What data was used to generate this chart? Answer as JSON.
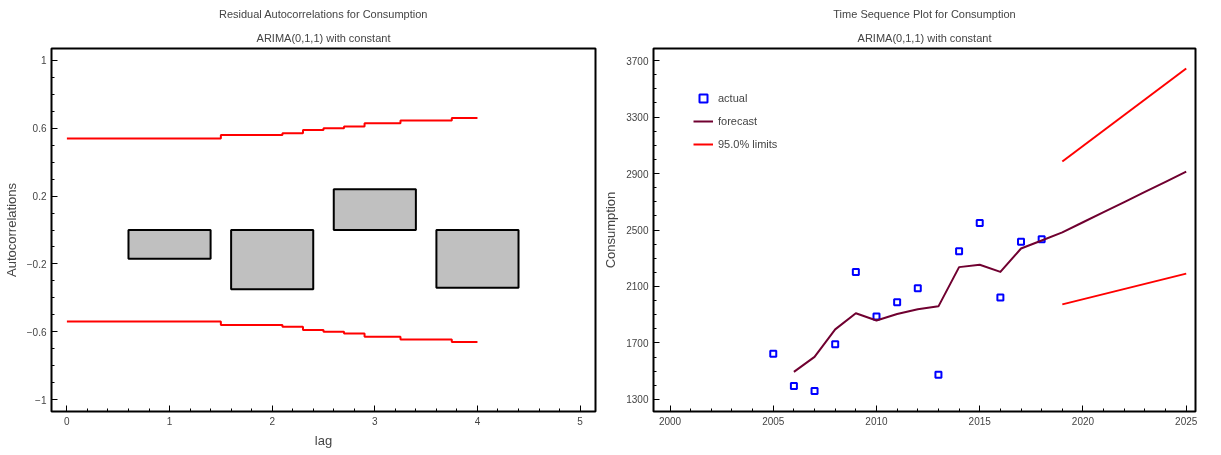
{
  "chart_data": [
    {
      "type": "bar",
      "title": "Residual Autocorrelations for Consumption",
      "subtitle": "ARIMA(0,1,1) with constant",
      "xlabel": "lag",
      "ylabel": "Autocorrelations",
      "xlim": [
        -0.15,
        5.15
      ],
      "xticks": [
        0,
        1,
        2,
        3,
        4,
        5
      ],
      "ylim": [
        -1.07,
        1.07
      ],
      "yticks": [
        -1,
        -0.6,
        -0.2,
        0.2,
        0.6,
        1
      ],
      "grid": false,
      "legend": false,
      "series": [
        {
          "color": "#c0c0c0",
          "x": [
            1,
            2,
            3,
            4
          ],
          "values": [
            -0.17,
            -0.35,
            0.24,
            -0.34
          ]
        },
        {
          "type": "step",
          "color": "#ff0000",
          "x": [
            0,
            1.5,
            2.1,
            2.3,
            2.5,
            2.7,
            2.9,
            3.25,
            3.75,
            4
          ],
          "values": [
            0.54,
            0.56,
            0.57,
            0.59,
            0.6,
            0.61,
            0.63,
            0.645,
            0.66,
            0.66
          ]
        },
        {
          "type": "step",
          "color": "#ff0000",
          "x": [
            0,
            1.5,
            2.1,
            2.3,
            2.5,
            2.7,
            2.9,
            3.25,
            3.75,
            4
          ],
          "values": [
            -0.54,
            -0.56,
            -0.57,
            -0.59,
            -0.6,
            -0.61,
            -0.63,
            -0.645,
            -0.66,
            -0.66
          ]
        }
      ]
    },
    {
      "type": "line",
      "title": "Time Sequence Plot for Consumption",
      "subtitle": "ARIMA(0,1,1) with constant",
      "ylabel": "Consumption",
      "xlim": [
        1999.2,
        2025.45
      ],
      "xticks": [
        2000,
        2005,
        2010,
        2015,
        2020,
        2025
      ],
      "ylim": [
        1214,
        3786
      ],
      "yticks": [
        1300,
        1700,
        2100,
        2500,
        2900,
        3300,
        3700
      ],
      "grid": false,
      "legend": "top left",
      "series": [
        {
          "type": "scatter",
          "name": "actual",
          "color": "#0000ff",
          "marker": "square",
          "x": [
            2005,
            2006,
            2007,
            2008,
            2009,
            2010,
            2011,
            2012,
            2013,
            2014,
            2015,
            2016,
            2017,
            2018
          ],
          "values": [
            1624,
            1395,
            1360,
            1690,
            2203,
            1887,
            1988,
            2088,
            1475,
            2349,
            2549,
            2022,
            2417,
            2435
          ]
        },
        {
          "name": "forecast",
          "color": "#700030",
          "x": [
            2006,
            2007,
            2008,
            2009,
            2010,
            2011,
            2012,
            2013,
            2014,
            2015,
            2016,
            2017,
            2018,
            2019,
            2020,
            2021,
            2022,
            2023,
            2024,
            2025
          ],
          "values": [
            1495,
            1601,
            1796,
            1910,
            1859,
            1905,
            1939,
            1959,
            2237,
            2254,
            2203,
            2369,
            2426,
            2483,
            2555,
            2627,
            2698,
            2770,
            2841,
            2913
          ]
        },
        {
          "name": "95.0% limits",
          "color": "#ff0000",
          "x": [
            2019,
            2025
          ],
          "values": [
            2985,
            3644
          ]
        },
        {
          "color": "#ff0000",
          "x": [
            2019,
            2025
          ],
          "values": [
            1973,
            2191
          ]
        }
      ]
    }
  ]
}
